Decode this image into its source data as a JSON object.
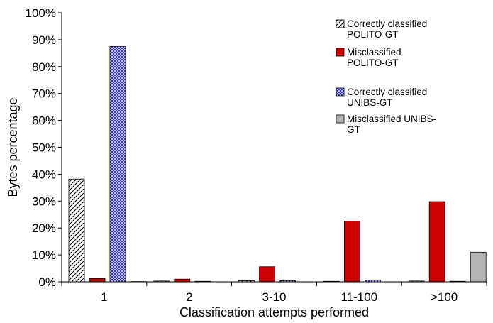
{
  "chart_data": {
    "type": "bar",
    "xlabel": "Classification attempts performed",
    "ylabel": "Bytes percentage",
    "ylim": [
      0,
      100
    ],
    "yticks": [
      "0%",
      "10%",
      "20%",
      "30%",
      "40%",
      "50%",
      "60%",
      "70%",
      "80%",
      "90%",
      "100%"
    ],
    "grid": false,
    "legend_position": "top-right",
    "categories": [
      "1",
      "2",
      "3-10",
      "11-100",
      ">100"
    ],
    "series": [
      {
        "name": "Correctly classified POLITO-GT",
        "legend_lines": [
          "Correctly classified",
          "POLITO-GT"
        ],
        "pattern": "diagonal-hatch",
        "color": "#ffffff",
        "values": [
          38.2,
          0.3,
          0.4,
          0.2,
          0.3
        ]
      },
      {
        "name": "Misclassified POLITO-GT",
        "legend_lines": [
          "Misclassified",
          "POLITO-GT"
        ],
        "pattern": "solid",
        "color": "#cc0000",
        "values": [
          1.2,
          1.0,
          5.6,
          22.6,
          29.8
        ]
      },
      {
        "name": "Correctly classified UNIBS-GT",
        "legend_lines": [
          "Correctly classified",
          "UNIBS-GT"
        ],
        "pattern": "cross-hatch",
        "color": "#2b2bc8",
        "values": [
          87.5,
          0.2,
          0.4,
          0.6,
          0.2
        ]
      },
      {
        "name": "Misclassified UNIBS-GT",
        "legend_lines": [
          "Misclassified UNIBS-",
          "GT"
        ],
        "pattern": "solid",
        "color": "#b3b3b3",
        "values": [
          0.1,
          0.0,
          0.0,
          0.0,
          11.0
        ]
      }
    ]
  }
}
